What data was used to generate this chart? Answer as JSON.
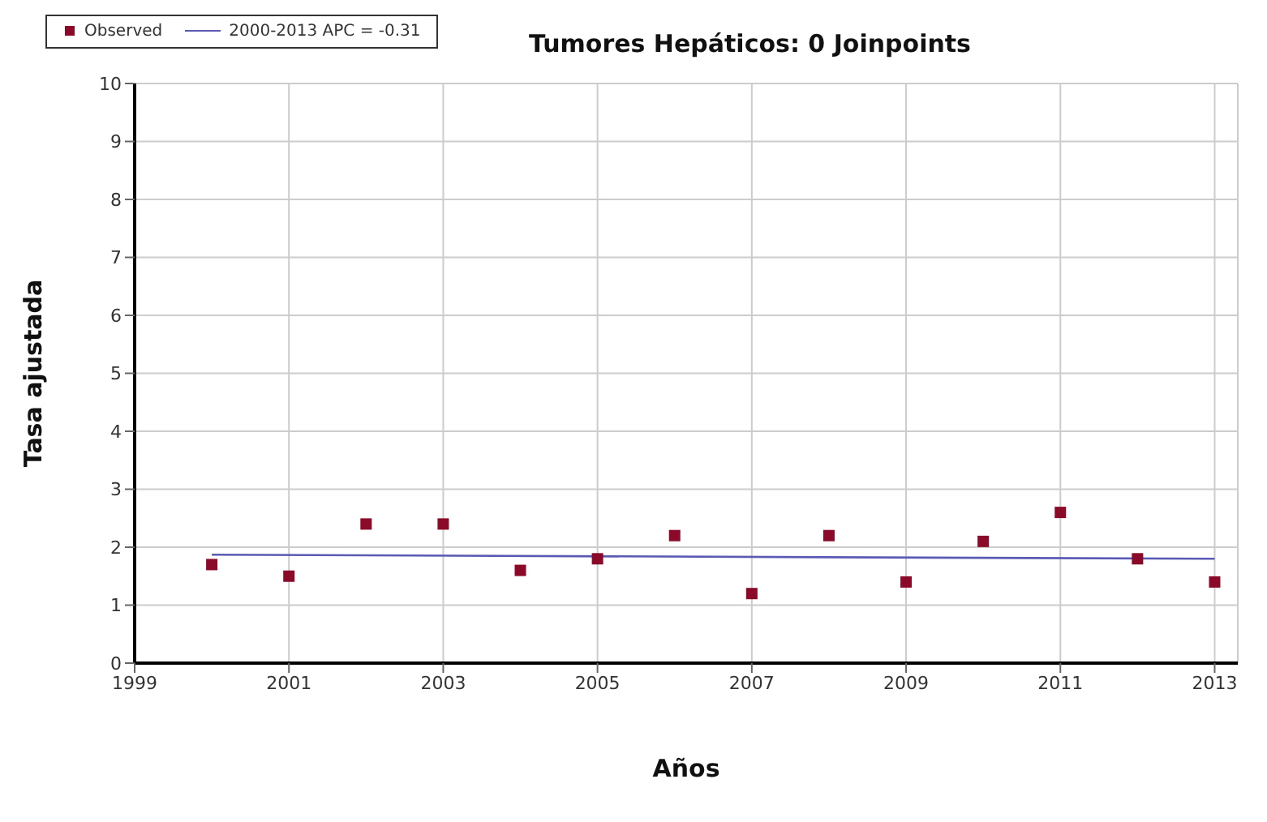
{
  "chart_data": {
    "type": "scatter",
    "title": "Tumores Hepáticos: 0 Joinpoints",
    "xlabel": "Años",
    "ylabel": "Tasa ajustada",
    "x": [
      2000,
      2001,
      2002,
      2003,
      2004,
      2005,
      2006,
      2007,
      2008,
      2009,
      2010,
      2011,
      2012,
      2013
    ],
    "series": [
      {
        "name": "Observed",
        "color": "#8b0a2a",
        "marker": "square",
        "values": [
          1.7,
          1.5,
          2.4,
          2.4,
          1.6,
          1.8,
          2.2,
          1.2,
          2.2,
          1.4,
          2.1,
          2.6,
          1.8,
          1.4
        ]
      },
      {
        "name": "2000-2013 APC = -0.31",
        "type": "line",
        "color": "#5a5ab4",
        "marker": "none",
        "x": [
          2000,
          2013
        ],
        "values": [
          1.87,
          1.8
        ]
      }
    ],
    "xlim": [
      1999,
      2013.3
    ],
    "xticks": [
      1999,
      2001,
      2003,
      2005,
      2007,
      2009,
      2011,
      2013
    ],
    "ylim": [
      0,
      10
    ],
    "yticks": [
      0,
      1,
      2,
      3,
      4,
      5,
      6,
      7,
      8,
      9,
      10
    ],
    "grid": true,
    "legend": "top left"
  }
}
